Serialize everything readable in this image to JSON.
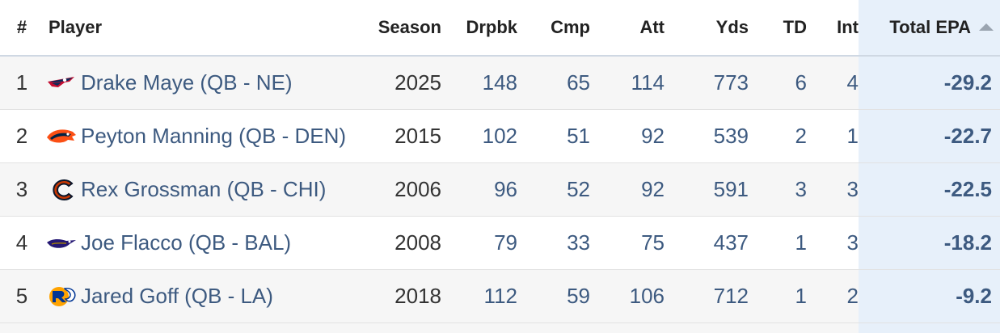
{
  "table": {
    "headers": {
      "rank": "#",
      "player": "Player",
      "season": "Season",
      "dropbacks": "Drpbk",
      "completions": "Cmp",
      "attempts": "Att",
      "yards": "Yds",
      "touchdowns": "TD",
      "interceptions": "Int",
      "total_epa": "Total EPA"
    },
    "sort": {
      "column": "total_epa",
      "direction": "ascending"
    },
    "rows": [
      {
        "rank": "1",
        "player": "Drake Maye (QB - NE)",
        "logo": "patriots-logo-icon",
        "season": "2025",
        "dropbacks": "148",
        "completions": "65",
        "attempts": "114",
        "yards": "773",
        "touchdowns": "6",
        "interceptions": "4",
        "total_epa": "-29.2"
      },
      {
        "rank": "2",
        "player": "Peyton Manning (QB - DEN)",
        "logo": "broncos-logo-icon",
        "season": "2015",
        "dropbacks": "102",
        "completions": "51",
        "attempts": "92",
        "yards": "539",
        "touchdowns": "2",
        "interceptions": "1",
        "total_epa": "-22.7"
      },
      {
        "rank": "3",
        "player": "Rex Grossman (QB - CHI)",
        "logo": "bears-logo-icon",
        "season": "2006",
        "dropbacks": "96",
        "completions": "52",
        "attempts": "92",
        "yards": "591",
        "touchdowns": "3",
        "interceptions": "3",
        "total_epa": "-22.5"
      },
      {
        "rank": "4",
        "player": "Joe Flacco (QB - BAL)",
        "logo": "ravens-logo-icon",
        "season": "2008",
        "dropbacks": "79",
        "completions": "33",
        "attempts": "75",
        "yards": "437",
        "touchdowns": "1",
        "interceptions": "3",
        "total_epa": "-18.2"
      },
      {
        "rank": "5",
        "player": "Jared Goff (QB - LA)",
        "logo": "rams-logo-icon",
        "season": "2018",
        "dropbacks": "112",
        "completions": "59",
        "attempts": "106",
        "yards": "712",
        "touchdowns": "1",
        "interceptions": "2",
        "total_epa": "-9.2"
      }
    ]
  }
}
